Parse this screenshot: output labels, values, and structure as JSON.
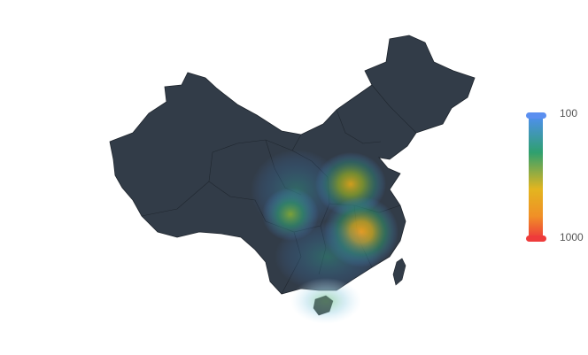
{
  "visual_map": {
    "max_label": "100",
    "min_label": "1000",
    "colors": [
      "#4f8ff0",
      "#2fa06e",
      "#e3b51f",
      "#f09027",
      "#ee3b3b"
    ],
    "handle_top_color": "#5b8ff0",
    "handle_bottom_color": "#ee3b3b"
  },
  "map": {
    "region": "china",
    "land_color": "#323c48",
    "border_color": "#1e252d"
  },
  "heat_points": [
    {
      "name": "north-china-plain",
      "intensity": 0.85,
      "color": "#d9a21b"
    },
    {
      "name": "yangtze-middle",
      "intensity": 0.95,
      "color": "#f0a020"
    },
    {
      "name": "sichuan-basin",
      "intensity": 0.6,
      "color": "#8ab030"
    },
    {
      "name": "guanzhong",
      "intensity": 0.35,
      "color": "#3a9a70"
    },
    {
      "name": "hainan",
      "intensity": 0.3,
      "color": "#8fd09a"
    }
  ]
}
